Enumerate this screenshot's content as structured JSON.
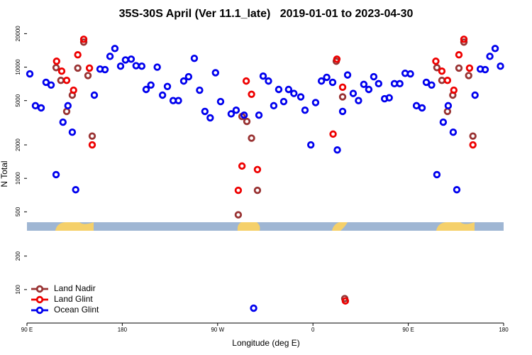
{
  "chart_data": {
    "type": "scatter",
    "title": "35S-30S April (Ver 11.1_late)   2019-01-01 to 2023-04-30",
    "x_label": "Longitude (deg E)",
    "y_label": "N Total",
    "xlim": [
      90,
      540
    ],
    "xticks": [
      {
        "value": 90,
        "label": "90 E"
      },
      {
        "value": 180,
        "label": "180"
      },
      {
        "value": 270,
        "label": "90 W"
      },
      {
        "value": 360,
        "label": "0"
      },
      {
        "value": 450,
        "label": "90 E"
      },
      {
        "value": 540,
        "label": "180"
      }
    ],
    "ylim": [
      50,
      24000
    ],
    "yticks": [
      100,
      200,
      500,
      1000,
      2000,
      5000,
      10000,
      20000
    ],
    "log_y": true,
    "legend": "bottom-left",
    "series": [
      {
        "name": "Land Nadir",
        "color": "#993333",
        "x": [
          117.5,
          122,
          127.5,
          132.8,
          138,
          143.6,
          147.6,
          151.6,
          289.5,
          293,
          297.6,
          302,
          307.6,
          382,
          388,
          390,
          477,
          481.7,
          487,
          492,
          497.8,
          502.5,
          507,
          511
        ],
        "values": [
          9900,
          7600,
          4000,
          5600,
          9800,
          16800,
          8400,
          2400,
          470,
          3600,
          3250,
          2300,
          780,
          11300,
          5400,
          83,
          9900,
          7600,
          4000,
          5600,
          9800,
          16800,
          8400,
          2400
        ]
      },
      {
        "name": "Land Glint",
        "color": "#ee0000",
        "x": [
          118,
          122.8,
          127.5,
          134,
          138,
          143.6,
          149,
          151.6,
          289.5,
          293,
          297,
          302,
          307.6,
          379,
          382.6,
          388,
          390.6,
          476,
          481.7,
          487,
          493,
          497.8,
          502.5,
          507.8,
          511
        ],
        "values": [
          11300,
          9200,
          7600,
          6200,
          12900,
          17800,
          9800,
          2000,
          780,
          1290,
          7500,
          5700,
          1200,
          2500,
          11800,
          6600,
          79,
          11300,
          9200,
          7600,
          6200,
          12900,
          17800,
          9800,
          2000
        ]
      },
      {
        "name": "Ocean Glint",
        "color": "#0000ee",
        "x": [
          92.7,
          98,
          103.4,
          108,
          112.8,
          117.5,
          124,
          128.7,
          132.8,
          136,
          153.6,
          159,
          163.7,
          168.4,
          173,
          178.4,
          183,
          188.4,
          193,
          198.4,
          202.5,
          207,
          213,
          218,
          222.6,
          228,
          233,
          238,
          242.6,
          248,
          253,
          258,
          263,
          268,
          272.8,
          282.8,
          287.5,
          295,
          304,
          309,
          313,
          318,
          323,
          327.7,
          332.4,
          337,
          342,
          348.5,
          352.5,
          358,
          362.5,
          368,
          373,
          378.6,
          383,
          388,
          392.7,
          398,
          403,
          408,
          412.7,
          417.4,
          422,
          427.6,
          432,
          436.9,
          442,
          447,
          452,
          457.7,
          463,
          467,
          472,
          477,
          483,
          487.7,
          492.4,
          495.8,
          513,
          518,
          522.6,
          527,
          532,
          537
        ],
        "values": [
          8700,
          4500,
          4300,
          7300,
          6900,
          1080,
          3200,
          4500,
          2600,
          790,
          5600,
          9600,
          9500,
          12500,
          14700,
          10200,
          11600,
          11800,
          10300,
          10200,
          6300,
          6900,
          10000,
          5600,
          6700,
          5000,
          5000,
          7500,
          8200,
          12000,
          6200,
          4000,
          3500,
          8900,
          4900,
          3800,
          4100,
          3700,
          68,
          3700,
          8300,
          7500,
          4500,
          6300,
          4900,
          6300,
          5800,
          5400,
          4100,
          2000,
          4800,
          7500,
          8100,
          7300,
          1800,
          4000,
          8500,
          5800,
          5000,
          7000,
          6300,
          8200,
          7100,
          5200,
          5300,
          7100,
          7100,
          8800,
          8700,
          4500,
          4300,
          7300,
          6900,
          1080,
          3200,
          4500,
          2600,
          790,
          5600,
          9600,
          9500,
          12500,
          14700,
          10200
        ]
      }
    ]
  }
}
